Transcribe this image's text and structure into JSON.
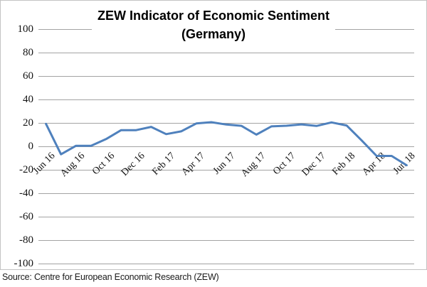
{
  "chart_data": {
    "type": "line",
    "title": "ZEW Indicator of Economic Sentiment",
    "subtitle": "(Germany)",
    "x": [
      "Jun 16",
      "Jul 16",
      "Aug 16",
      "Sep 16",
      "Oct 16",
      "Nov 16",
      "Dec 16",
      "Jan 17",
      "Feb 17",
      "Mar 17",
      "Apr 17",
      "May 17",
      "Jun 17",
      "Jul 17",
      "Aug 17",
      "Sep 17",
      "Oct 17",
      "Nov 17",
      "Dec 17",
      "Jan 18",
      "Feb 18",
      "Mar 18",
      "Apr 18",
      "May 18",
      "Jun 18"
    ],
    "values": [
      19.2,
      -6.8,
      0.5,
      0.5,
      6.2,
      13.8,
      13.8,
      16.6,
      10.4,
      12.8,
      19.5,
      20.6,
      18.6,
      17.5,
      10.0,
      17.0,
      17.6,
      18.7,
      17.4,
      20.4,
      17.8,
      5.1,
      -8.2,
      -8.2,
      -16.1
    ],
    "x_label_every": 2,
    "y_tick_labels": [
      "100",
      "80",
      "60",
      "40",
      "20",
      "0",
      "-20",
      "-40",
      "-60",
      "-80",
      "-100"
    ],
    "ylim": [
      -100,
      100
    ],
    "ytick_step": 20,
    "xlabel": "",
    "ylabel": "",
    "grid": true,
    "legend": "none",
    "line_color": "#4F81BD",
    "gridline_color": "#a3a3a3",
    "border_color": "#c3c3c3"
  },
  "source": "Source: Centre for European Economic Research (ZEW)"
}
